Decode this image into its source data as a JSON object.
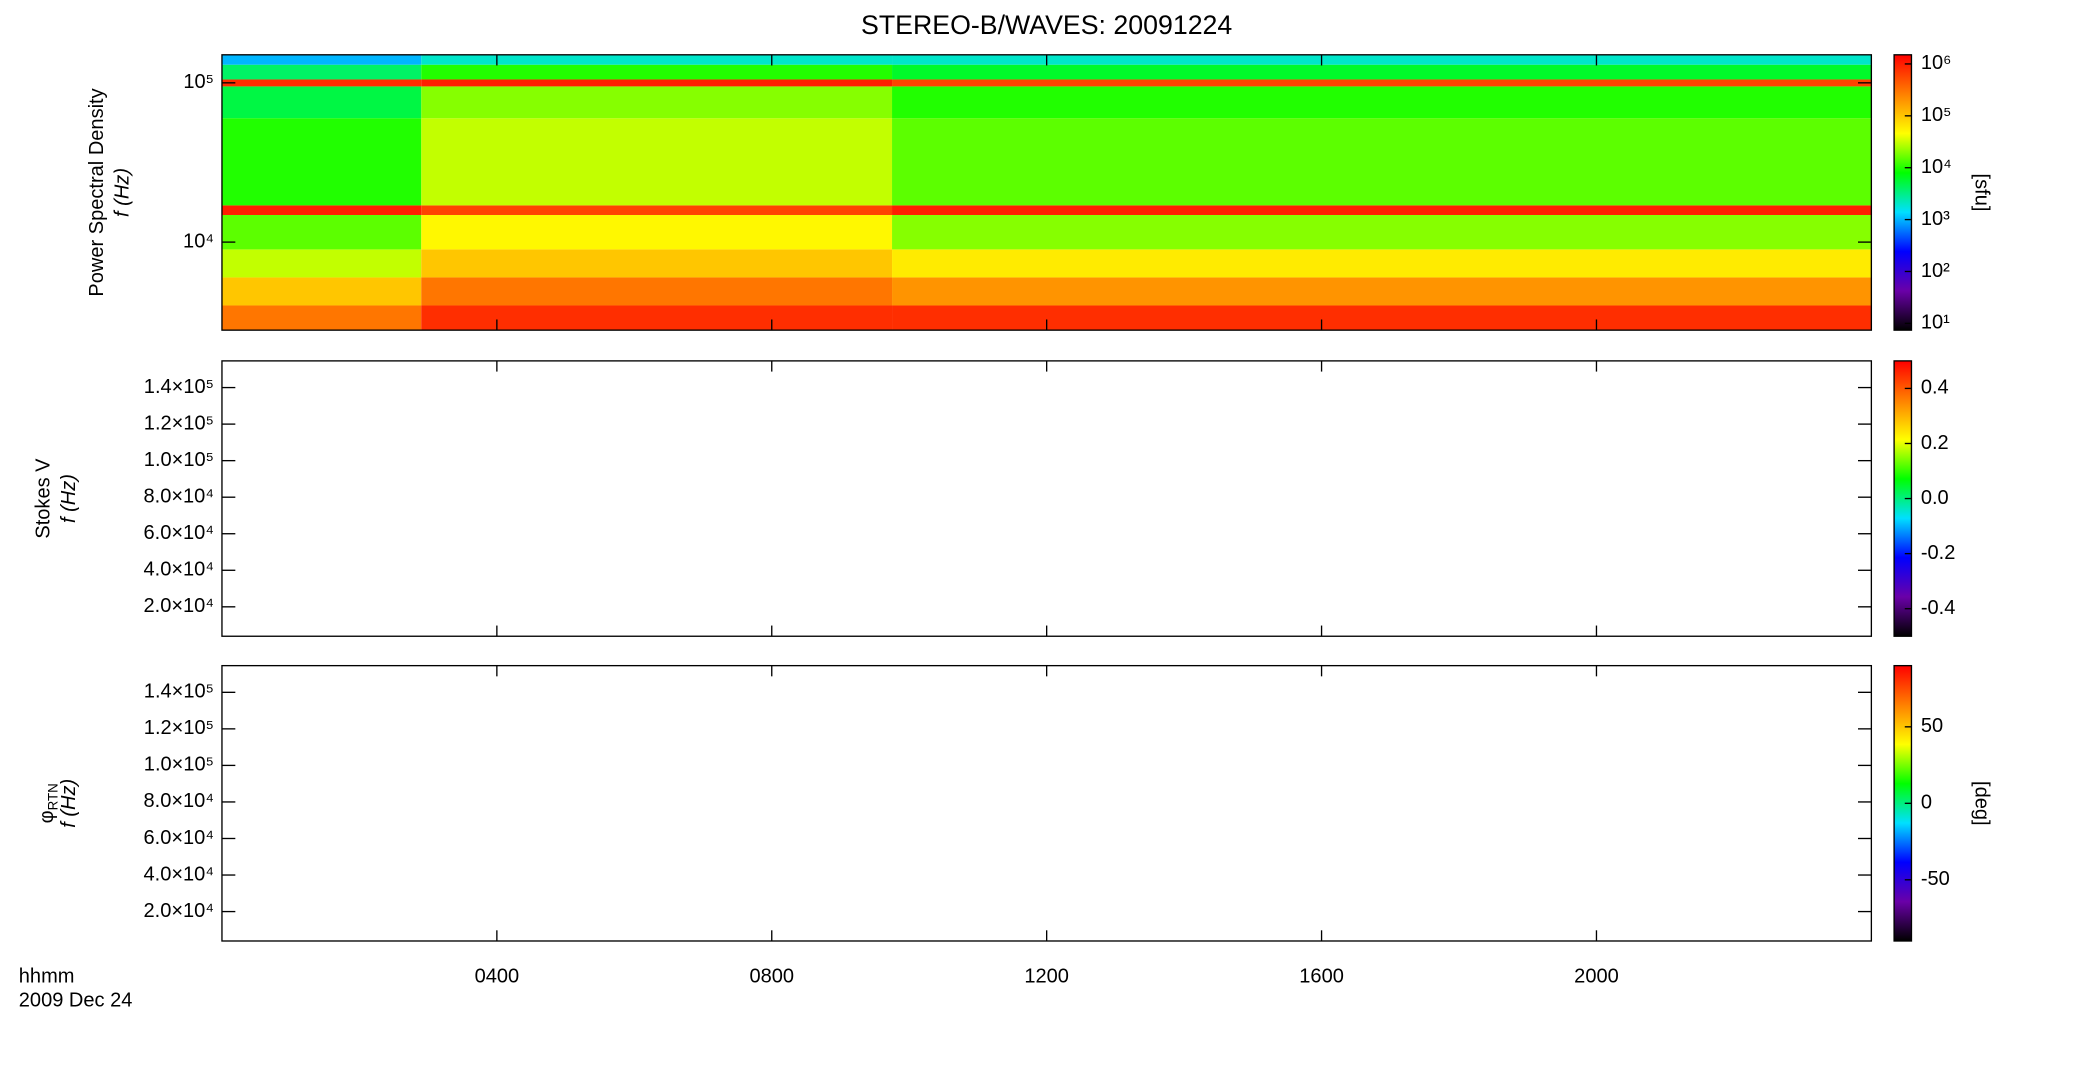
{
  "chart_data": [
    {
      "type": "heatmap",
      "title": "STEREO-B/WAVES: 20091224",
      "ylabel": [
        "Power Spectral Density",
        "f (Hz)"
      ],
      "ylog": true,
      "ylim": [
        2800,
        150000
      ],
      "yticks": [
        {
          "value": 10000,
          "label": "10⁴"
        },
        {
          "value": 100000,
          "label": "10⁵"
        }
      ],
      "x_edges": [
        0,
        2.9,
        9.75,
        24
      ],
      "y_edges": [
        2800,
        4000,
        6000,
        9000,
        14800,
        17000,
        60000,
        95000,
        105000,
        130000,
        150000
      ],
      "values": [
        [
          300000,
          800000,
          800000
        ],
        [
          100000,
          300000,
          200000
        ],
        [
          30000,
          100000,
          60000
        ],
        [
          15000,
          50000,
          20000
        ],
        [
          1000000,
          600000,
          1000000
        ],
        [
          10000,
          30000,
          15000
        ],
        [
          5000,
          20000,
          10000
        ],
        [
          800000,
          1000000,
          600000
        ],
        [
          4000,
          10000,
          6000
        ],
        [
          1000,
          2000,
          2000
        ]
      ],
      "zlog": true,
      "zlim": [
        7.4,
        1500000
      ],
      "zticks": [
        {
          "value": 10,
          "label": "10¹"
        },
        {
          "value": 100,
          "label": "10²"
        },
        {
          "value": 1000,
          "label": "10³"
        },
        {
          "value": 10000,
          "label": "10⁴"
        },
        {
          "value": 100000,
          "label": "10⁵"
        },
        {
          "value": 1000000,
          "label": "10⁶"
        }
      ],
      "zlabel": "[sfu]",
      "colors": [
        "#000000",
        "#6a00a8",
        "#0000ff",
        "#00e0ff",
        "#00ff00",
        "#ffff00",
        "#ff8000",
        "#ff0000"
      ]
    },
    {
      "type": "heatmap",
      "ylabel": [
        "Stokes V",
        "f (Hz)"
      ],
      "ylog": false,
      "ylim": [
        3900,
        154600
      ],
      "yticks": [
        {
          "value": 20000,
          "label": "2.0×10⁴"
        },
        {
          "value": 40000,
          "label": "4.0×10⁴"
        },
        {
          "value": 60000,
          "label": "6.0×10⁴"
        },
        {
          "value": 80000,
          "label": "8.0×10⁴"
        },
        {
          "value": 100000,
          "label": "1.0×10⁵"
        },
        {
          "value": 120000,
          "label": "1.2×10⁵"
        },
        {
          "value": 140000,
          "label": "1.4×10⁵"
        }
      ],
      "zlog": false,
      "zlim": [
        -0.5,
        0.5
      ],
      "zticks": [
        -0.4,
        -0.2,
        {
          "value": 0,
          "label": "0.0"
        },
        0.2,
        0.4
      ],
      "colors": [
        "#000000",
        "#6a00a8",
        "#0000ff",
        "#00e0ff",
        "#00ff00",
        "#ffff00",
        "#ff8000",
        "#ff0000"
      ]
    },
    {
      "type": "heatmap",
      "ylabel": [
        "φ",
        "RTN",
        "f (Hz)"
      ],
      "ylog": false,
      "ylim": [
        3900,
        154600
      ],
      "yticks": [
        {
          "value": 20000,
          "label": "2.0×10⁴"
        },
        {
          "value": 40000,
          "label": "4.0×10⁴"
        },
        {
          "value": 60000,
          "label": "6.0×10⁴"
        },
        {
          "value": 80000,
          "label": "8.0×10⁴"
        },
        {
          "value": 100000,
          "label": "1.0×10⁵"
        },
        {
          "value": 120000,
          "label": "1.2×10⁵"
        },
        {
          "value": 140000,
          "label": "1.4×10⁵"
        }
      ],
      "zlog": false,
      "zlim": [
        -90,
        90
      ],
      "zticks": [
        -50,
        0,
        50
      ],
      "zlabel": "[deg]",
      "colors": [
        "#000000",
        "#6a00a8",
        "#0000ff",
        "#00e0ff",
        "#00ff00",
        "#ffff00",
        "#ff8000",
        "#ff0000"
      ],
      "xlim": [
        0,
        24
      ],
      "xticks": [
        {
          "value": 4,
          "label": "0400"
        },
        {
          "value": 8,
          "label": "0800"
        },
        {
          "value": 12,
          "label": "1200"
        },
        {
          "value": 16,
          "label": "1600"
        },
        {
          "value": 20,
          "label": "2000"
        }
      ],
      "xlabel": [
        "hhmm",
        "2009 Dec 24"
      ]
    }
  ]
}
